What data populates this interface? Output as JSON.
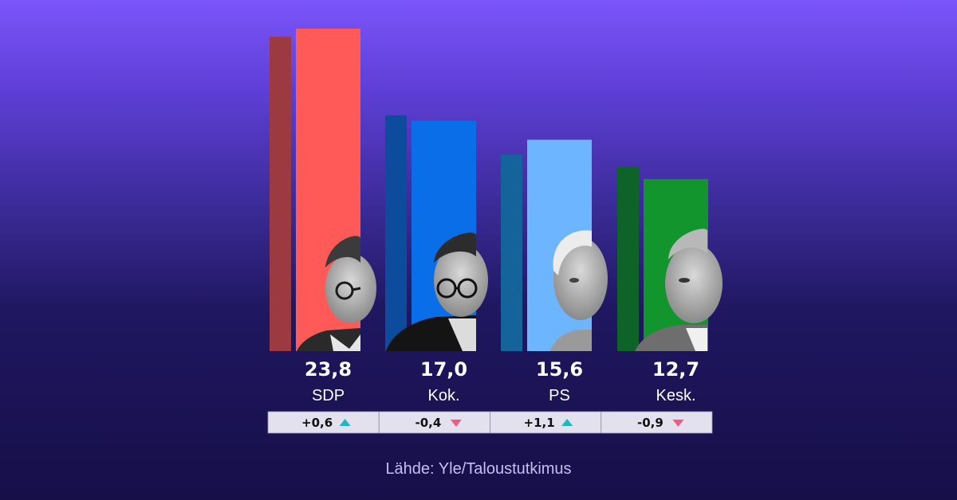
{
  "colors": {
    "up_arrow": "#1fb7c4",
    "down_arrow": "#ef5a86",
    "change_box": "#e3e1ee",
    "text": "#ffffff"
  },
  "chart_data": {
    "type": "bar",
    "categories": [
      "SDP",
      "Kok.",
      "PS",
      "Kesk."
    ],
    "value_labels": [
      "23,8",
      "17,0",
      "15,6",
      "12,7"
    ],
    "change_labels": [
      "+0,6",
      "-0,4",
      "+1,1",
      "-0,9"
    ],
    "series": [
      {
        "values": [
          23.2,
          17.4,
          14.5,
          13.6
        ],
        "colors": [
          "#9c3a42",
          "#0d4b9c",
          "#15639b",
          "#0e6428"
        ]
      },
      {
        "values": [
          23.8,
          17.0,
          15.6,
          12.7
        ],
        "colors": [
          "#ff5a58",
          "#0a6ee8",
          "#6db5ff",
          "#11952c"
        ]
      }
    ],
    "changes": [
      0.6,
      -0.4,
      1.1,
      -0.9
    ],
    "ylim": [
      0,
      23.8
    ],
    "grid": false,
    "legend": "none"
  },
  "source_text": "Lähde: Yle/Taloustutkimus"
}
